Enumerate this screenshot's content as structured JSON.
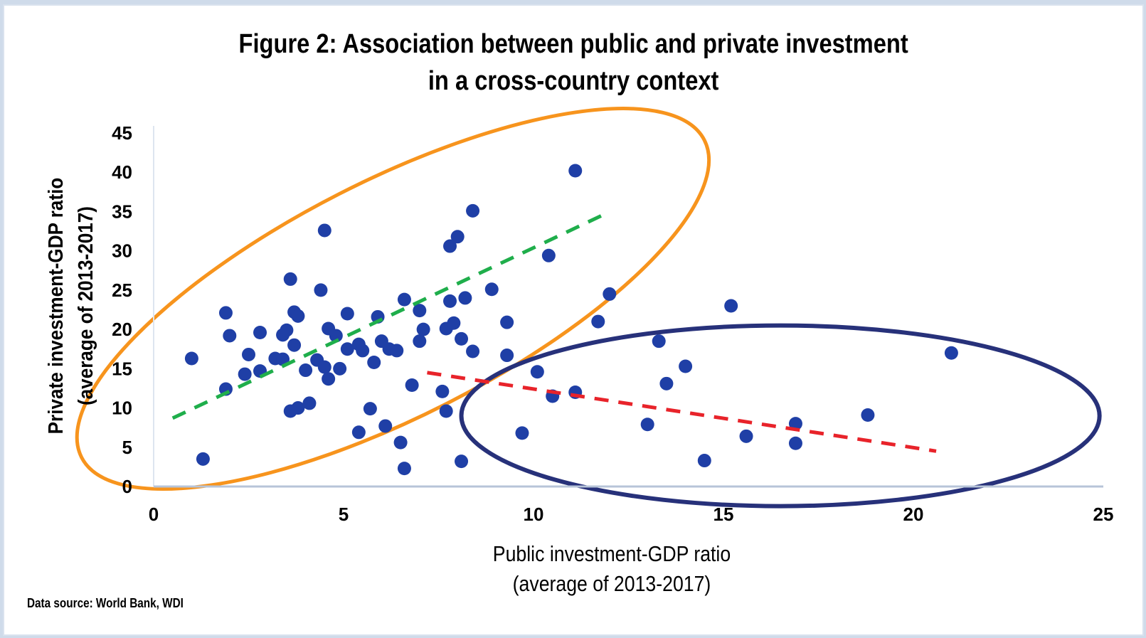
{
  "chart_data": {
    "type": "scatter",
    "title": "Figure 2: Association between public and private investment",
    "title_line2": "in a cross-country context",
    "xlabel": "Public investment-GDP ratio",
    "xlabel_line2": "(average of 2013-2017)",
    "ylabel": "Private investment-GDP ratio",
    "ylabel_line2": "(average of 2013-2017)",
    "source": "Data source: World Bank, WDI",
    "xlim": [
      0,
      25
    ],
    "ylim": [
      0,
      45
    ],
    "xticks": [
      0,
      5,
      10,
      15,
      20,
      25
    ],
    "yticks": [
      0,
      5,
      10,
      15,
      20,
      25,
      30,
      35,
      40,
      45
    ],
    "grid": false,
    "colors": {
      "points": "#1f3fa6",
      "axis": "#b7c4d8",
      "trend_low": "#1fae4b",
      "trend_high": "#e8232a",
      "cluster_low": "#f7941d",
      "cluster_high": "#27317a"
    },
    "points": [
      [
        1.0,
        16.3
      ],
      [
        1.3,
        3.5
      ],
      [
        1.9,
        12.4
      ],
      [
        1.9,
        22.1
      ],
      [
        2.0,
        19.2
      ],
      [
        2.4,
        14.3
      ],
      [
        2.5,
        16.8
      ],
      [
        2.8,
        14.7
      ],
      [
        2.8,
        19.6
      ],
      [
        3.2,
        16.3
      ],
      [
        3.4,
        16.2
      ],
      [
        3.4,
        19.3
      ],
      [
        3.5,
        19.9
      ],
      [
        3.6,
        9.6
      ],
      [
        3.6,
        26.4
      ],
      [
        3.7,
        22.2
      ],
      [
        3.7,
        18.0
      ],
      [
        3.8,
        21.7
      ],
      [
        3.8,
        10.0
      ],
      [
        4.0,
        14.8
      ],
      [
        4.1,
        10.6
      ],
      [
        4.3,
        16.1
      ],
      [
        4.4,
        25.0
      ],
      [
        4.5,
        15.2
      ],
      [
        4.5,
        32.6
      ],
      [
        4.6,
        13.7
      ],
      [
        4.6,
        20.1
      ],
      [
        4.8,
        19.2
      ],
      [
        4.9,
        15.0
      ],
      [
        5.1,
        22.0
      ],
      [
        5.1,
        17.5
      ],
      [
        5.4,
        18.1
      ],
      [
        5.4,
        6.9
      ],
      [
        5.5,
        17.3
      ],
      [
        5.7,
        9.9
      ],
      [
        5.8,
        15.8
      ],
      [
        5.9,
        21.6
      ],
      [
        6.0,
        18.5
      ],
      [
        6.1,
        7.7
      ],
      [
        6.2,
        17.5
      ],
      [
        6.4,
        17.3
      ],
      [
        6.5,
        5.6
      ],
      [
        6.6,
        2.3
      ],
      [
        6.6,
        23.8
      ],
      [
        6.8,
        12.9
      ],
      [
        7.0,
        18.5
      ],
      [
        7.0,
        22.4
      ],
      [
        7.1,
        20.0
      ],
      [
        7.6,
        12.1
      ],
      [
        7.7,
        9.6
      ],
      [
        7.7,
        20.1
      ],
      [
        7.8,
        23.6
      ],
      [
        7.8,
        30.6
      ],
      [
        7.9,
        20.8
      ],
      [
        8.0,
        31.8
      ],
      [
        8.1,
        3.2
      ],
      [
        8.1,
        18.8
      ],
      [
        8.2,
        24.0
      ],
      [
        8.4,
        17.2
      ],
      [
        8.4,
        35.1
      ],
      [
        8.9,
        25.1
      ],
      [
        9.3,
        20.9
      ],
      [
        9.3,
        16.7
      ],
      [
        9.7,
        6.8
      ],
      [
        10.1,
        14.6
      ],
      [
        10.4,
        29.4
      ],
      [
        10.5,
        11.5
      ],
      [
        11.1,
        40.2
      ],
      [
        11.1,
        12.0
      ],
      [
        11.7,
        21.0
      ],
      [
        12.0,
        24.5
      ],
      [
        13.0,
        7.9
      ],
      [
        13.3,
        18.5
      ],
      [
        13.5,
        13.1
      ],
      [
        14.0,
        15.3
      ],
      [
        14.5,
        3.3
      ],
      [
        15.2,
        23.0
      ],
      [
        15.6,
        6.4
      ],
      [
        16.9,
        5.5
      ],
      [
        16.9,
        8.0
      ],
      [
        18.8,
        9.1
      ],
      [
        21.0,
        17.0
      ]
    ],
    "trendlines": [
      {
        "name": "low public investment trend",
        "from": [
          0.5,
          8.7
        ],
        "to": [
          11.8,
          34.5
        ]
      },
      {
        "name": "high public investment trend",
        "from": [
          7.2,
          14.5
        ],
        "to": [
          20.6,
          4.5
        ]
      }
    ],
    "annotations": [
      {
        "name": "low public investment cluster ellipse",
        "center": [
          6.3,
          23.9
        ],
        "radii": [
          9.2,
          15.0
        ],
        "rotation_deg": -27
      },
      {
        "name": "high public investment cluster ellipse",
        "center": [
          16.5,
          9.0
        ],
        "radii": [
          8.4,
          11.5
        ],
        "rotation_deg": 0
      }
    ]
  }
}
